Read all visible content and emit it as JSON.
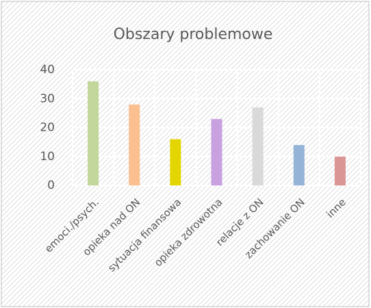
{
  "chart_data": {
    "type": "bar",
    "title": "Obszary problemowe",
    "categories": [
      "emoci./psych.",
      "opieka nad ON",
      "sytuacja finansowa",
      "opieka zdrowotna",
      "relacje z ON",
      "zachowanie ON",
      "inne"
    ],
    "values": [
      36,
      28,
      16,
      23,
      27,
      14,
      10
    ],
    "colors": [
      "#c3d69b",
      "#fac090",
      "#e3d600",
      "#c9a0e0",
      "#d9d9d9",
      "#95b3d7",
      "#d99694"
    ],
    "ylim": [
      0,
      40
    ],
    "yticks": [
      0,
      10,
      20,
      30,
      40
    ],
    "grid": true
  }
}
